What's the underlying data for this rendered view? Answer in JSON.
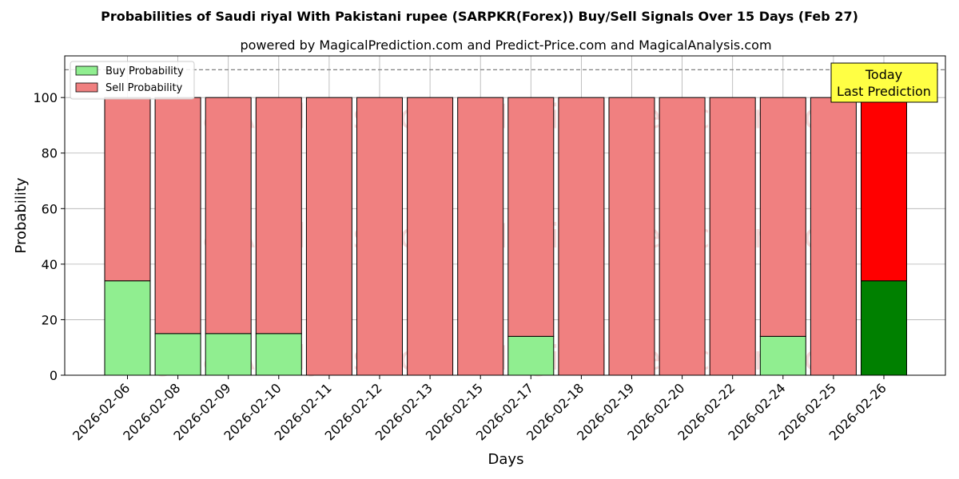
{
  "chart_data": {
    "type": "bar",
    "stacked": true,
    "title": "Probabilities of Saudi riyal With Pakistani rupee (SARPKR(Forex)) Buy/Sell Signals Over 15 Days (Feb 27)",
    "subtitle": "powered by MagicalPrediction.com and Predict-Price.com and MagicalAnalysis.com",
    "xlabel": "Days",
    "ylabel": "Probability",
    "ylim": [
      0,
      115
    ],
    "yticks": [
      0,
      20,
      40,
      60,
      80,
      100
    ],
    "reference_line": 110,
    "grid": true,
    "legend_position": "top-left",
    "categories": [
      "2026-02-06",
      "2026-02-08",
      "2026-02-09",
      "2026-02-10",
      "2026-02-11",
      "2026-02-12",
      "2026-02-13",
      "2026-02-15",
      "2026-02-17",
      "2026-02-18",
      "2026-02-19",
      "2026-02-20",
      "2026-02-22",
      "2026-02-24",
      "2026-02-25",
      "2026-02-26"
    ],
    "series": [
      {
        "name": "Buy Probability",
        "color": "#90ee90",
        "values": [
          34,
          15,
          15,
          15,
          0,
          0,
          0,
          0,
          14,
          0,
          0,
          0,
          0,
          14,
          0,
          34
        ]
      },
      {
        "name": "Sell Probability",
        "color": "#f08080",
        "values": [
          66,
          85,
          85,
          85,
          100,
          100,
          100,
          100,
          86,
          100,
          100,
          100,
          100,
          86,
          100,
          66
        ]
      }
    ],
    "highlight": {
      "index": 15,
      "buy_color": "#008000",
      "sell_color": "#ff0000"
    },
    "annotation": {
      "lines": [
        "Today",
        "Last Prediction"
      ],
      "background": "#ffff44"
    },
    "watermarks": [
      "MagicalAnalysis.com",
      "MagicalPrediction.com"
    ]
  }
}
